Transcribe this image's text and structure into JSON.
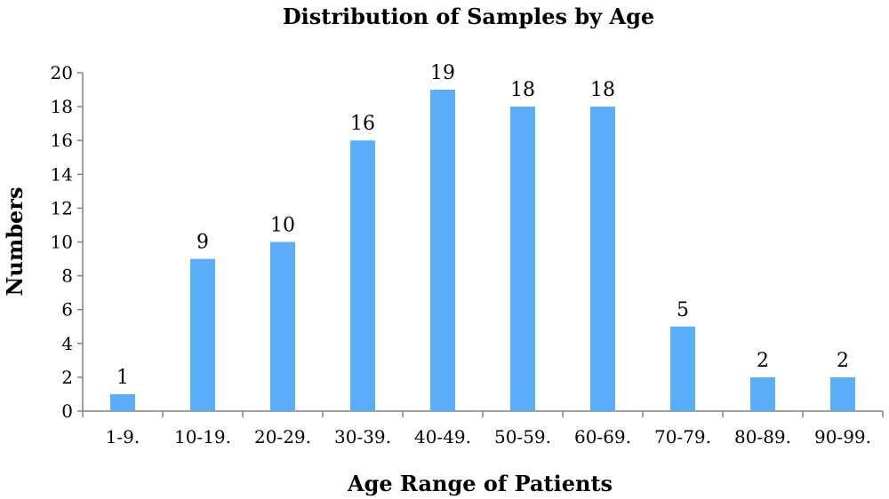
{
  "chart_data": {
    "type": "bar",
    "title": "Distribution of Samples by Age",
    "xlabel": "Age Range of Patients",
    "ylabel": "Numbers",
    "categories": [
      "1-9.",
      "10-19.",
      "20-29.",
      "30-39.",
      "40-49.",
      "50-59.",
      "60-69.",
      "70-79.",
      "80-89.",
      "90-99."
    ],
    "values": [
      1,
      9,
      10,
      16,
      19,
      18,
      18,
      5,
      2,
      2
    ],
    "ylim": [
      0,
      20
    ],
    "yticks": [
      "0",
      "2",
      "4",
      "6",
      "8",
      "10",
      "12",
      "14",
      "16",
      "18",
      "20"
    ],
    "bar_color": "#5aaef7",
    "grid": false,
    "legend": "none",
    "data_labels": true
  }
}
